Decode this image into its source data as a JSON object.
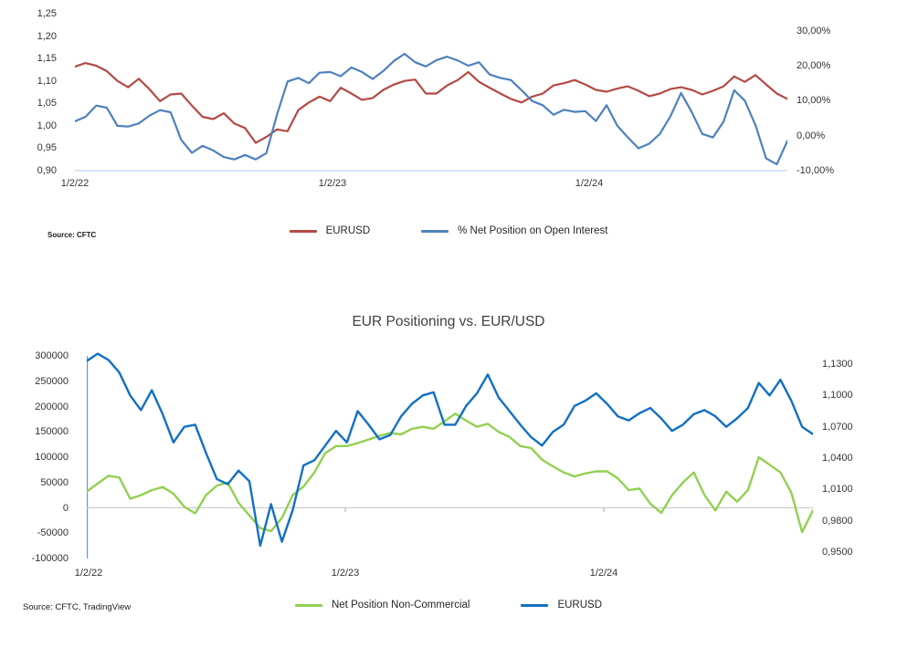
{
  "page": {
    "background": "#ffffff"
  },
  "chart_data": [
    {
      "type": "line",
      "title": "",
      "source": "Source: CFTC",
      "x_ticks": [
        "1/2/22",
        "1/2/23",
        "1/2/24"
      ],
      "grid": "off",
      "legend_position": "bottom-center",
      "left_axis": {
        "min": 0.9,
        "max": 1.25,
        "ticks": [
          "1,25",
          "1,20",
          "1,15",
          "1,10",
          "1,05",
          "1,00",
          "0,95",
          "0,90"
        ]
      },
      "right_axis": {
        "min": -10,
        "max": 30,
        "ticks": [
          "30,00%",
          "20,00%",
          "10,00%",
          "0,00%",
          "-10,00%"
        ]
      },
      "series": [
        {
          "name": "EURUSD",
          "axis": "left",
          "color": "#B34A45",
          "values": [
            1.132,
            1.14,
            1.134,
            1.122,
            1.1,
            1.086,
            1.105,
            1.082,
            1.055,
            1.07,
            1.072,
            1.045,
            1.02,
            1.015,
            1.028,
            1.005,
            0.995,
            0.962,
            0.975,
            0.992,
            0.988,
            1.035,
            1.052,
            1.065,
            1.055,
            1.085,
            1.072,
            1.058,
            1.062,
            1.08,
            1.092,
            1.1,
            1.103,
            1.072,
            1.072,
            1.09,
            1.102,
            1.12,
            1.098,
            1.085,
            1.072,
            1.06,
            1.052,
            1.065,
            1.072,
            1.09,
            1.095,
            1.102,
            1.092,
            1.08,
            1.076,
            1.083,
            1.088,
            1.078,
            1.066,
            1.072,
            1.082,
            1.086,
            1.08,
            1.07,
            1.078,
            1.088,
            1.11,
            1.098,
            1.113,
            1.092,
            1.072,
            1.06
          ]
        },
        {
          "name": "% Net Position on Open Interest",
          "axis": "right",
          "color": "#4E81BD",
          "values": [
            4.1,
            5.4,
            8.6,
            8.0,
            2.8,
            2.6,
            3.5,
            5.7,
            7.3,
            6.7,
            -1.2,
            -4.9,
            -2.9,
            -4.2,
            -6.1,
            -6.8,
            -5.5,
            -6.8,
            -5.0,
            6.0,
            15.5,
            16.5,
            15.0,
            18.0,
            18.2,
            17.0,
            19.5,
            18.2,
            16.2,
            18.5,
            21.4,
            23.4,
            21.0,
            19.8,
            21.6,
            22.6,
            21.5,
            20.0,
            21.0,
            17.5,
            16.5,
            15.9,
            13.0,
            9.9,
            8.7,
            6.0,
            7.4,
            6.8,
            7.0,
            4.2,
            8.7,
            2.9,
            -0.5,
            -3.6,
            -2.3,
            0.5,
            5.5,
            12.2,
            6.8,
            0.5,
            -0.5,
            4.0,
            13.0,
            10.0,
            3.0,
            -6.5,
            -8.2,
            -1.5
          ]
        }
      ]
    },
    {
      "type": "line",
      "title": "EUR Positioning vs. EUR/USD",
      "source": "Source: CFTC, TradingView",
      "x_ticks": [
        "1/2/22",
        "1/2/23",
        "1/2/24"
      ],
      "grid": "zero-line-only",
      "legend_position": "bottom-center",
      "left_axis": {
        "min": -100000,
        "max": 300000,
        "ticks": [
          "300000",
          "250000",
          "200000",
          "150000",
          "100000",
          "50000",
          "0",
          "-50000",
          "-100000"
        ]
      },
      "right_axis": {
        "min": 0.95,
        "max": 1.13,
        "ticks": [
          "1,1300",
          "1,1000",
          "1,0700",
          "1,0400",
          "1,0100",
          "0,9800",
          "0,9500"
        ]
      },
      "series": [
        {
          "name": "Net Position Non-Commercial",
          "axis": "left",
          "color": "#92D050",
          "values": [
            32000,
            48000,
            63000,
            60000,
            18000,
            25000,
            35000,
            41000,
            28000,
            2000,
            -11000,
            25000,
            44000,
            50000,
            10000,
            -15000,
            -40000,
            -46000,
            -20000,
            25000,
            42000,
            70000,
            108000,
            122000,
            122000,
            128000,
            135000,
            142000,
            148000,
            145000,
            156000,
            160000,
            156000,
            171000,
            186000,
            172000,
            160000,
            166000,
            150000,
            140000,
            122000,
            118000,
            95000,
            82000,
            70000,
            62000,
            68000,
            72000,
            72000,
            58000,
            35000,
            38000,
            8000,
            -10000,
            25000,
            50000,
            70000,
            25000,
            -5000,
            32000,
            12000,
            35000,
            100000,
            85000,
            70000,
            30000,
            -48000,
            -5000
          ]
        },
        {
          "name": "EURUSD",
          "axis": "right",
          "color": "#1170C4",
          "values": [
            1.133,
            1.14,
            1.134,
            1.122,
            1.1,
            1.086,
            1.105,
            1.082,
            1.055,
            1.07,
            1.072,
            1.045,
            1.02,
            1.015,
            1.028,
            1.018,
            0.956,
            0.996,
            0.96,
            0.99,
            1.033,
            1.038,
            1.052,
            1.066,
            1.055,
            1.085,
            1.072,
            1.058,
            1.062,
            1.08,
            1.092,
            1.1,
            1.103,
            1.072,
            1.072,
            1.09,
            1.102,
            1.12,
            1.098,
            1.085,
            1.072,
            1.06,
            1.052,
            1.065,
            1.072,
            1.09,
            1.095,
            1.102,
            1.092,
            1.08,
            1.076,
            1.083,
            1.088,
            1.078,
            1.066,
            1.072,
            1.082,
            1.086,
            1.08,
            1.07,
            1.078,
            1.088,
            1.112,
            1.1,
            1.115,
            1.095,
            1.07,
            1.063
          ]
        }
      ]
    }
  ]
}
